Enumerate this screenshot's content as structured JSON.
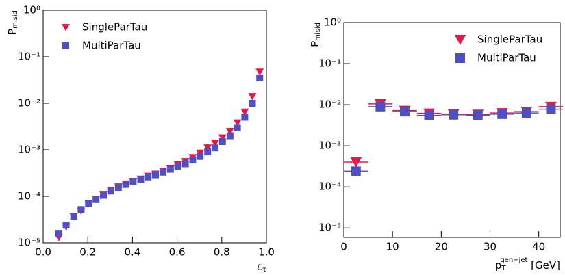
{
  "chart_data": [
    {
      "type": "scatter",
      "log_y": true,
      "xlabel": {
        "text": "ε",
        "subscript": "τ"
      },
      "ylabel": {
        "text": "P",
        "subscript": "misid"
      },
      "xlim": [
        0,
        1
      ],
      "ylim": [
        1e-05,
        1
      ],
      "xticks": [
        {
          "value": 0,
          "label": "0.0"
        },
        0.2,
        0.4,
        0.6,
        0.8,
        {
          "value": 1,
          "label": "1.0"
        }
      ],
      "yticks": [
        {
          "value": 1e-05,
          "label": "10⁻⁵"
        },
        {
          "value": 0.0001,
          "label": "10⁻⁴"
        },
        {
          "value": 0.001,
          "label": "10⁻³"
        },
        {
          "value": 0.01,
          "label": "10⁻²"
        },
        {
          "value": 0.1,
          "label": "10⁻¹"
        },
        {
          "value": 1,
          "label": "10⁰"
        }
      ],
      "legend": "upper left",
      "x": [
        0.07,
        0.103,
        0.137,
        0.17,
        0.203,
        0.237,
        0.27,
        0.303,
        0.337,
        0.37,
        0.403,
        0.437,
        0.47,
        0.503,
        0.537,
        0.57,
        0.603,
        0.637,
        0.67,
        0.703,
        0.737,
        0.77,
        0.803,
        0.837,
        0.87,
        0.903,
        0.937,
        0.97
      ],
      "series": [
        {
          "name": "SingleParTau",
          "color": "#e8174a",
          "marker": "triangle-down",
          "values": [
            1.3e-05,
            2.2e-05,
            3.6e-05,
            4.8e-05,
            7e-05,
            8.7e-05,
            0.00011,
            0.000135,
            0.00016,
            0.000185,
            0.00021,
            0.000235,
            0.00027,
            0.0003,
            0.00035,
            0.0004,
            0.00048,
            0.00056,
            0.00068,
            0.00085,
            0.0011,
            0.0014,
            0.0018,
            0.0025,
            0.0038,
            0.0065,
            0.014,
            0.047
          ]
        },
        {
          "name": "MultiParTau",
          "color": "#4f4fc4",
          "marker": "square",
          "values": [
            1.6e-05,
            2.4e-05,
            3.7e-05,
            5.2e-05,
            7e-05,
            8.5e-05,
            0.000105,
            0.00013,
            0.000155,
            0.00018,
            0.00021,
            0.00023,
            0.00026,
            0.00029,
            0.00033,
            0.00038,
            0.00044,
            0.0005,
            0.0006,
            0.00072,
            0.0009,
            0.0011,
            0.0015,
            0.002,
            0.003,
            0.005,
            0.01,
            0.035
          ]
        }
      ]
    },
    {
      "type": "scatter",
      "log_y": true,
      "xlabel": {
        "text": "p",
        "subscript": "T",
        "superscript": "gen−jet",
        "suffix": " [GeV]"
      },
      "ylabel": {
        "text": "P",
        "subscript": "misid"
      },
      "xlim": [
        0,
        44.4
      ],
      "ylim": [
        5.9e-06,
        1
      ],
      "xticks": [
        0,
        10,
        20,
        30,
        40
      ],
      "yticks": [
        {
          "value": 1e-05,
          "label": "10⁻⁵"
        },
        {
          "value": 0.0001,
          "label": "10⁻⁴"
        },
        {
          "value": 0.001,
          "label": "10⁻³"
        },
        {
          "value": 0.01,
          "label": "10⁻²"
        },
        {
          "value": 0.1,
          "label": "10⁻¹"
        },
        {
          "value": 1,
          "label": "10⁰"
        }
      ],
      "legend": "upper right",
      "x_error": 2.5,
      "x": [
        2.5,
        7.5,
        12.5,
        17.5,
        22.5,
        27.5,
        32.5,
        37.5,
        42.5
      ],
      "series": [
        {
          "name": "SingleParTau",
          "color": "#e8174a",
          "marker": "triangle-down",
          "values": [
            0.0004,
            0.0105,
            0.0072,
            0.0062,
            0.0059,
            0.0058,
            0.0063,
            0.0068,
            0.009
          ]
        },
        {
          "name": "MultiParTau",
          "color": "#4f4fc4",
          "marker": "square",
          "values": [
            0.00024,
            0.009,
            0.0068,
            0.0055,
            0.0057,
            0.0056,
            0.0059,
            0.0063,
            0.0078
          ]
        }
      ]
    }
  ]
}
